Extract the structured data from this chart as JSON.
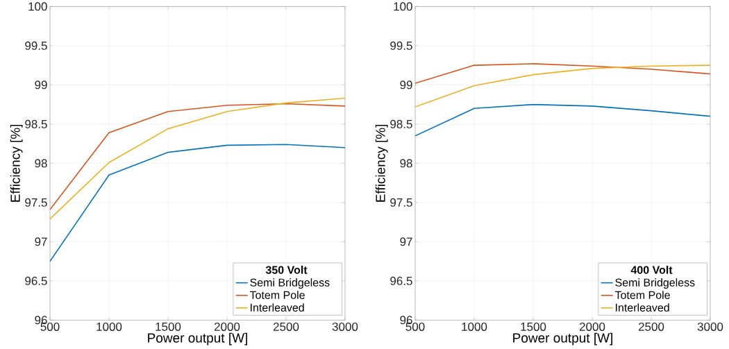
{
  "chart_data": [
    {
      "type": "line",
      "x": [
        500,
        1000,
        1500,
        2000,
        2500,
        3000
      ],
      "xlim": [
        500,
        3000
      ],
      "xticks": [
        500,
        1000,
        1500,
        2000,
        2500,
        3000
      ],
      "ylim": [
        96,
        100
      ],
      "yticks": [
        96,
        96.5,
        97,
        97.5,
        98,
        98.5,
        99,
        99.5,
        100
      ],
      "xlabel": "Power output [W]",
      "ylabel": "Efficiency [%]",
      "legend_title": "350 Volt",
      "legend": "bottom right",
      "grid": true,
      "line_style": "solid",
      "marker": "none",
      "series": [
        {
          "name": "Semi Bridgeless",
          "color": "#0072bd",
          "values": [
            96.75,
            97.85,
            98.14,
            98.23,
            98.24,
            98.2
          ]
        },
        {
          "name": "Totem Pole",
          "color": "#d95319",
          "values": [
            97.41,
            98.39,
            98.66,
            98.74,
            98.76,
            98.73
          ]
        },
        {
          "name": "Interleaved",
          "color": "#edb120",
          "values": [
            97.29,
            98.01,
            98.44,
            98.66,
            98.77,
            98.83
          ]
        }
      ]
    },
    {
      "type": "line",
      "x": [
        500,
        1000,
        1500,
        2000,
        2500,
        3000
      ],
      "xlim": [
        500,
        3000
      ],
      "xticks": [
        500,
        1000,
        1500,
        2000,
        2500,
        3000
      ],
      "ylim": [
        96,
        100
      ],
      "yticks": [
        96,
        96.5,
        97,
        97.5,
        98,
        98.5,
        99,
        99.5,
        100
      ],
      "xlabel": "Power output [W]",
      "ylabel": "Efficiency [%]",
      "legend_title": "400 Volt",
      "legend": "bottom right",
      "grid": true,
      "line_style": "solid",
      "marker": "none",
      "series": [
        {
          "name": "Semi Bridgeless",
          "color": "#0072bd",
          "values": [
            98.35,
            98.7,
            98.75,
            98.73,
            98.67,
            98.6
          ]
        },
        {
          "name": "Totem Pole",
          "color": "#d95319",
          "values": [
            99.02,
            99.25,
            99.27,
            99.24,
            99.2,
            99.14
          ]
        },
        {
          "name": "Interleaved",
          "color": "#edb120",
          "values": [
            98.72,
            98.99,
            99.13,
            99.21,
            99.24,
            99.25
          ]
        }
      ]
    }
  ]
}
